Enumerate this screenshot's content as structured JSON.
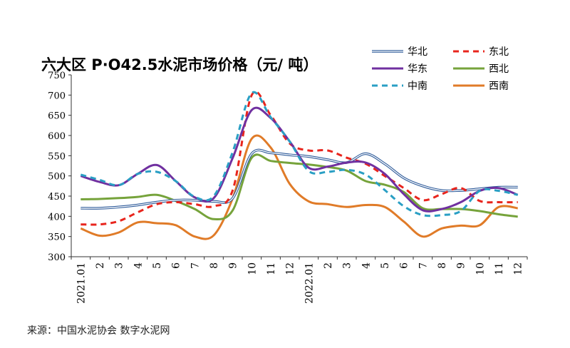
{
  "chart_data": {
    "type": "line",
    "title": "六大区 P·O42.5水泥市场价格（元/ 吨）",
    "ylim": [
      300,
      750
    ],
    "yticks": [
      300,
      350,
      400,
      450,
      500,
      550,
      600,
      650,
      700,
      750
    ],
    "categories": [
      "2021.01",
      "2",
      "3",
      "4",
      "5",
      "6",
      "7",
      "8",
      "9",
      "10",
      "11",
      "12",
      "2022.01",
      "2",
      "3",
      "4",
      "5",
      "6",
      "7",
      "8",
      "9",
      "10",
      "11",
      "12"
    ],
    "series": [
      {
        "name": "华北",
        "color": "#2e5b9a",
        "style": "double",
        "values": [
          420,
          420,
          423,
          428,
          435,
          440,
          440,
          437,
          445,
          555,
          557,
          552,
          548,
          540,
          533,
          555,
          530,
          495,
          475,
          464,
          464,
          468,
          472,
          472
        ]
      },
      {
        "name": "东北",
        "color": "#e8251d",
        "style": "dash",
        "values": [
          380,
          380,
          388,
          410,
          430,
          435,
          430,
          425,
          465,
          700,
          650,
          580,
          563,
          563,
          545,
          530,
          500,
          470,
          440,
          455,
          470,
          438,
          435,
          435
        ]
      },
      {
        "name": "华东",
        "color": "#7030a0",
        "style": "solid",
        "values": [
          500,
          485,
          477,
          505,
          527,
          487,
          447,
          445,
          545,
          663,
          643,
          585,
          520,
          523,
          533,
          533,
          505,
          455,
          415,
          418,
          435,
          463,
          470,
          453
        ]
      },
      {
        "name": "西北",
        "color": "#76a33b",
        "style": "solid",
        "values": [
          442,
          443,
          445,
          448,
          453,
          438,
          418,
          393,
          415,
          545,
          537,
          532,
          528,
          522,
          513,
          487,
          478,
          460,
          420,
          418,
          418,
          413,
          405,
          399
        ]
      },
      {
        "name": "中南",
        "color": "#2a9fc4",
        "style": "dash",
        "values": [
          503,
          490,
          477,
          505,
          510,
          487,
          448,
          450,
          560,
          705,
          645,
          585,
          512,
          510,
          515,
          503,
          465,
          425,
          403,
          403,
          413,
          463,
          463,
          453
        ]
      },
      {
        "name": "西南",
        "color": "#e07b28",
        "style": "solid",
        "values": [
          370,
          352,
          360,
          385,
          383,
          378,
          350,
          353,
          445,
          592,
          570,
          480,
          437,
          430,
          423,
          428,
          423,
          387,
          350,
          370,
          377,
          378,
          423,
          420
        ]
      }
    ]
  },
  "footer": {
    "source": "来源：中国水泥协会  数字水泥网"
  }
}
